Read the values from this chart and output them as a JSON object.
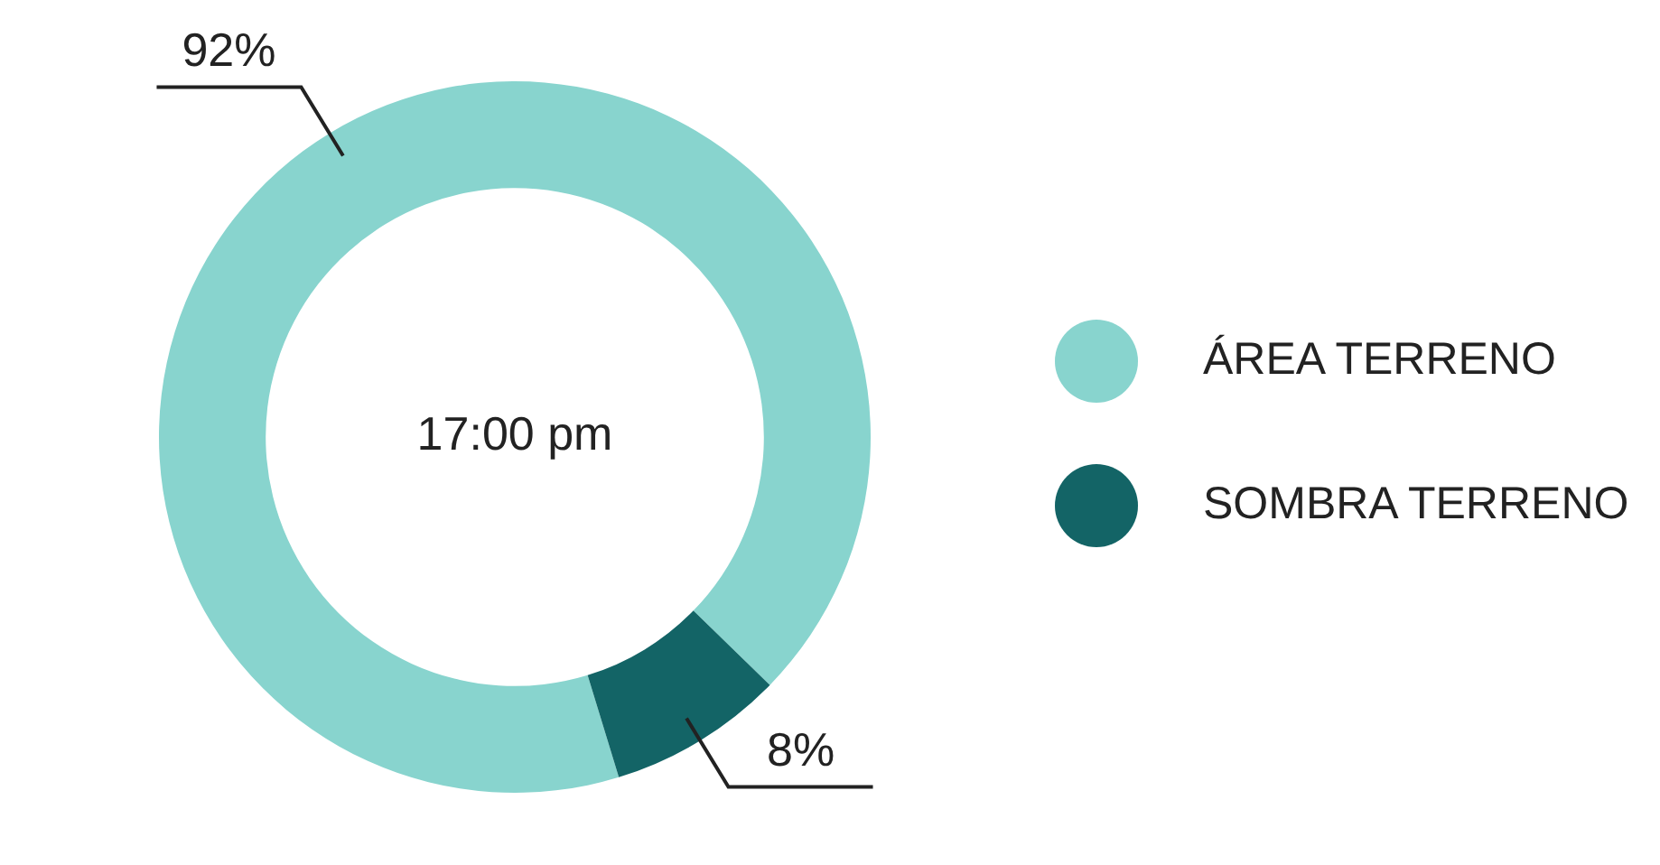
{
  "chart_data": {
    "type": "donut",
    "categories": [
      "ÁREA TERRENO",
      "SOMBRA TERRENO"
    ],
    "values": [
      92,
      8
    ],
    "colors": [
      "#88d4ce",
      "#136466"
    ],
    "value_labels": [
      "92%",
      "8%"
    ],
    "annotations": [
      "17:00 pm"
    ],
    "legend": "right"
  }
}
